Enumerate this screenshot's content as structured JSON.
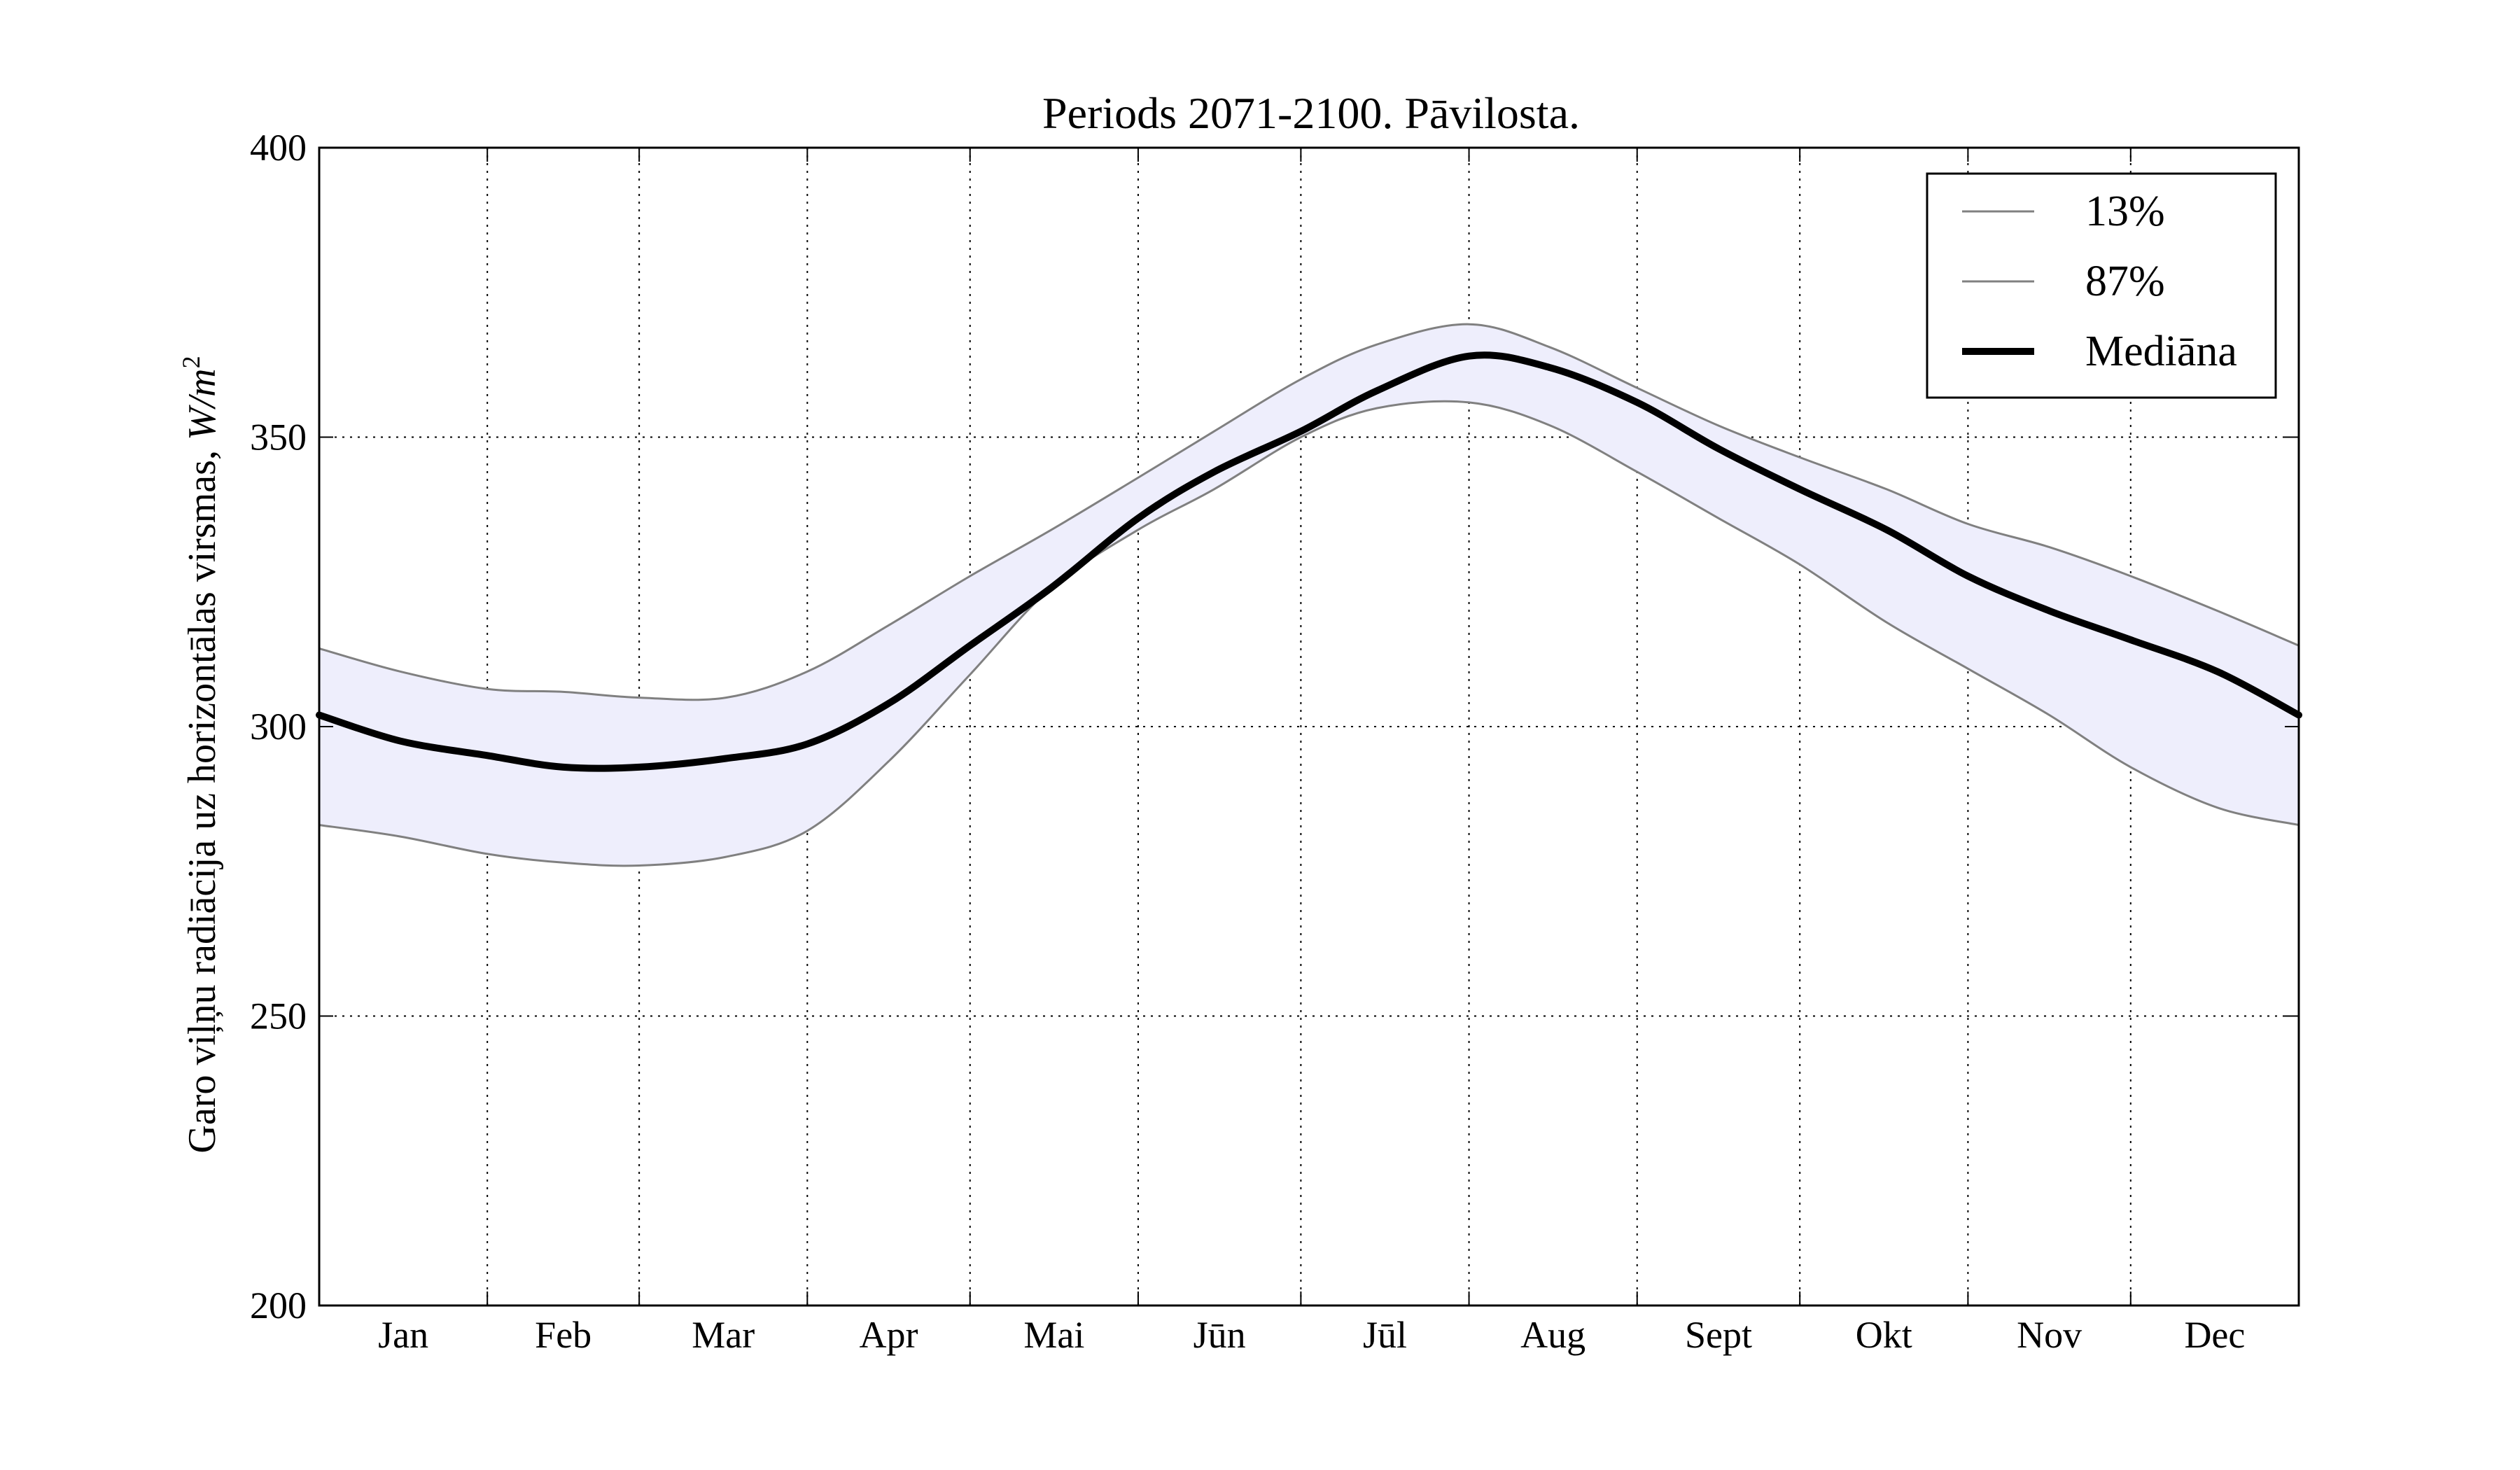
{
  "chart_data": {
    "type": "line",
    "title": "Periods 2071-2100. Pāvilosta.",
    "ylabel_text": "Garo viļņu radiācija uz horizontālas virsmas, ",
    "ylabel_unit_base": "W/m",
    "ylabel_unit_exp": "2",
    "xlabel": "",
    "ylim": [
      200,
      400
    ],
    "yticks": [
      "200",
      "250",
      "300",
      "350",
      "400"
    ],
    "xlim": [
      0,
      365
    ],
    "month_bounds": [
      0,
      31,
      59,
      90,
      120,
      151,
      181,
      212,
      243,
      273,
      304,
      334,
      365
    ],
    "month_labels": [
      "Jan",
      "Feb",
      "Mar",
      "Apr",
      "Mai",
      "Jūn",
      "Jūl",
      "Aug",
      "Sept",
      "Okt",
      "Nov",
      "Dec"
    ],
    "grid": true,
    "legend_position": "top-right",
    "fill_color": "#eeeefc",
    "series": [
      {
        "name": "13%",
        "color": "#808080",
        "role": "lower",
        "x": [
          0,
          15,
          31,
          45,
          59,
          75,
          90,
          105,
          120,
          135,
          151,
          165,
          181,
          195,
          212,
          227,
          243,
          258,
          273,
          289,
          304,
          319,
          334,
          350,
          365
        ],
        "y": [
          283,
          281,
          278,
          276.5,
          276,
          277.5,
          282,
          294,
          309,
          324,
          334,
          341,
          350,
          355,
          356,
          352,
          344,
          336,
          328,
          318,
          310,
          302,
          293,
          286,
          283
        ]
      },
      {
        "name": "87%",
        "color": "#808080",
        "role": "upper",
        "x": [
          0,
          15,
          31,
          45,
          59,
          75,
          90,
          105,
          120,
          135,
          151,
          165,
          181,
          195,
          212,
          227,
          243,
          258,
          273,
          289,
          304,
          319,
          334,
          350,
          365
        ],
        "y": [
          313.5,
          309.5,
          306.5,
          306,
          305,
          305,
          309.5,
          317.5,
          326,
          334,
          343,
          351,
          360,
          366,
          369.5,
          365.5,
          358.5,
          352,
          346.5,
          341,
          335,
          331,
          326,
          320,
          314
        ]
      },
      {
        "name": "Mediāna",
        "color": "#000000",
        "role": "median",
        "x": [
          0,
          15,
          31,
          45,
          59,
          75,
          90,
          105,
          120,
          135,
          151,
          165,
          181,
          195,
          212,
          227,
          243,
          258,
          273,
          289,
          304,
          319,
          334,
          350,
          365
        ],
        "y": [
          302,
          297.5,
          295,
          293,
          293,
          294.5,
          297,
          304,
          314,
          324,
          336,
          344,
          351,
          358,
          364,
          362,
          356,
          348,
          341,
          334,
          326,
          320,
          315,
          309.5,
          302
        ]
      }
    ]
  }
}
